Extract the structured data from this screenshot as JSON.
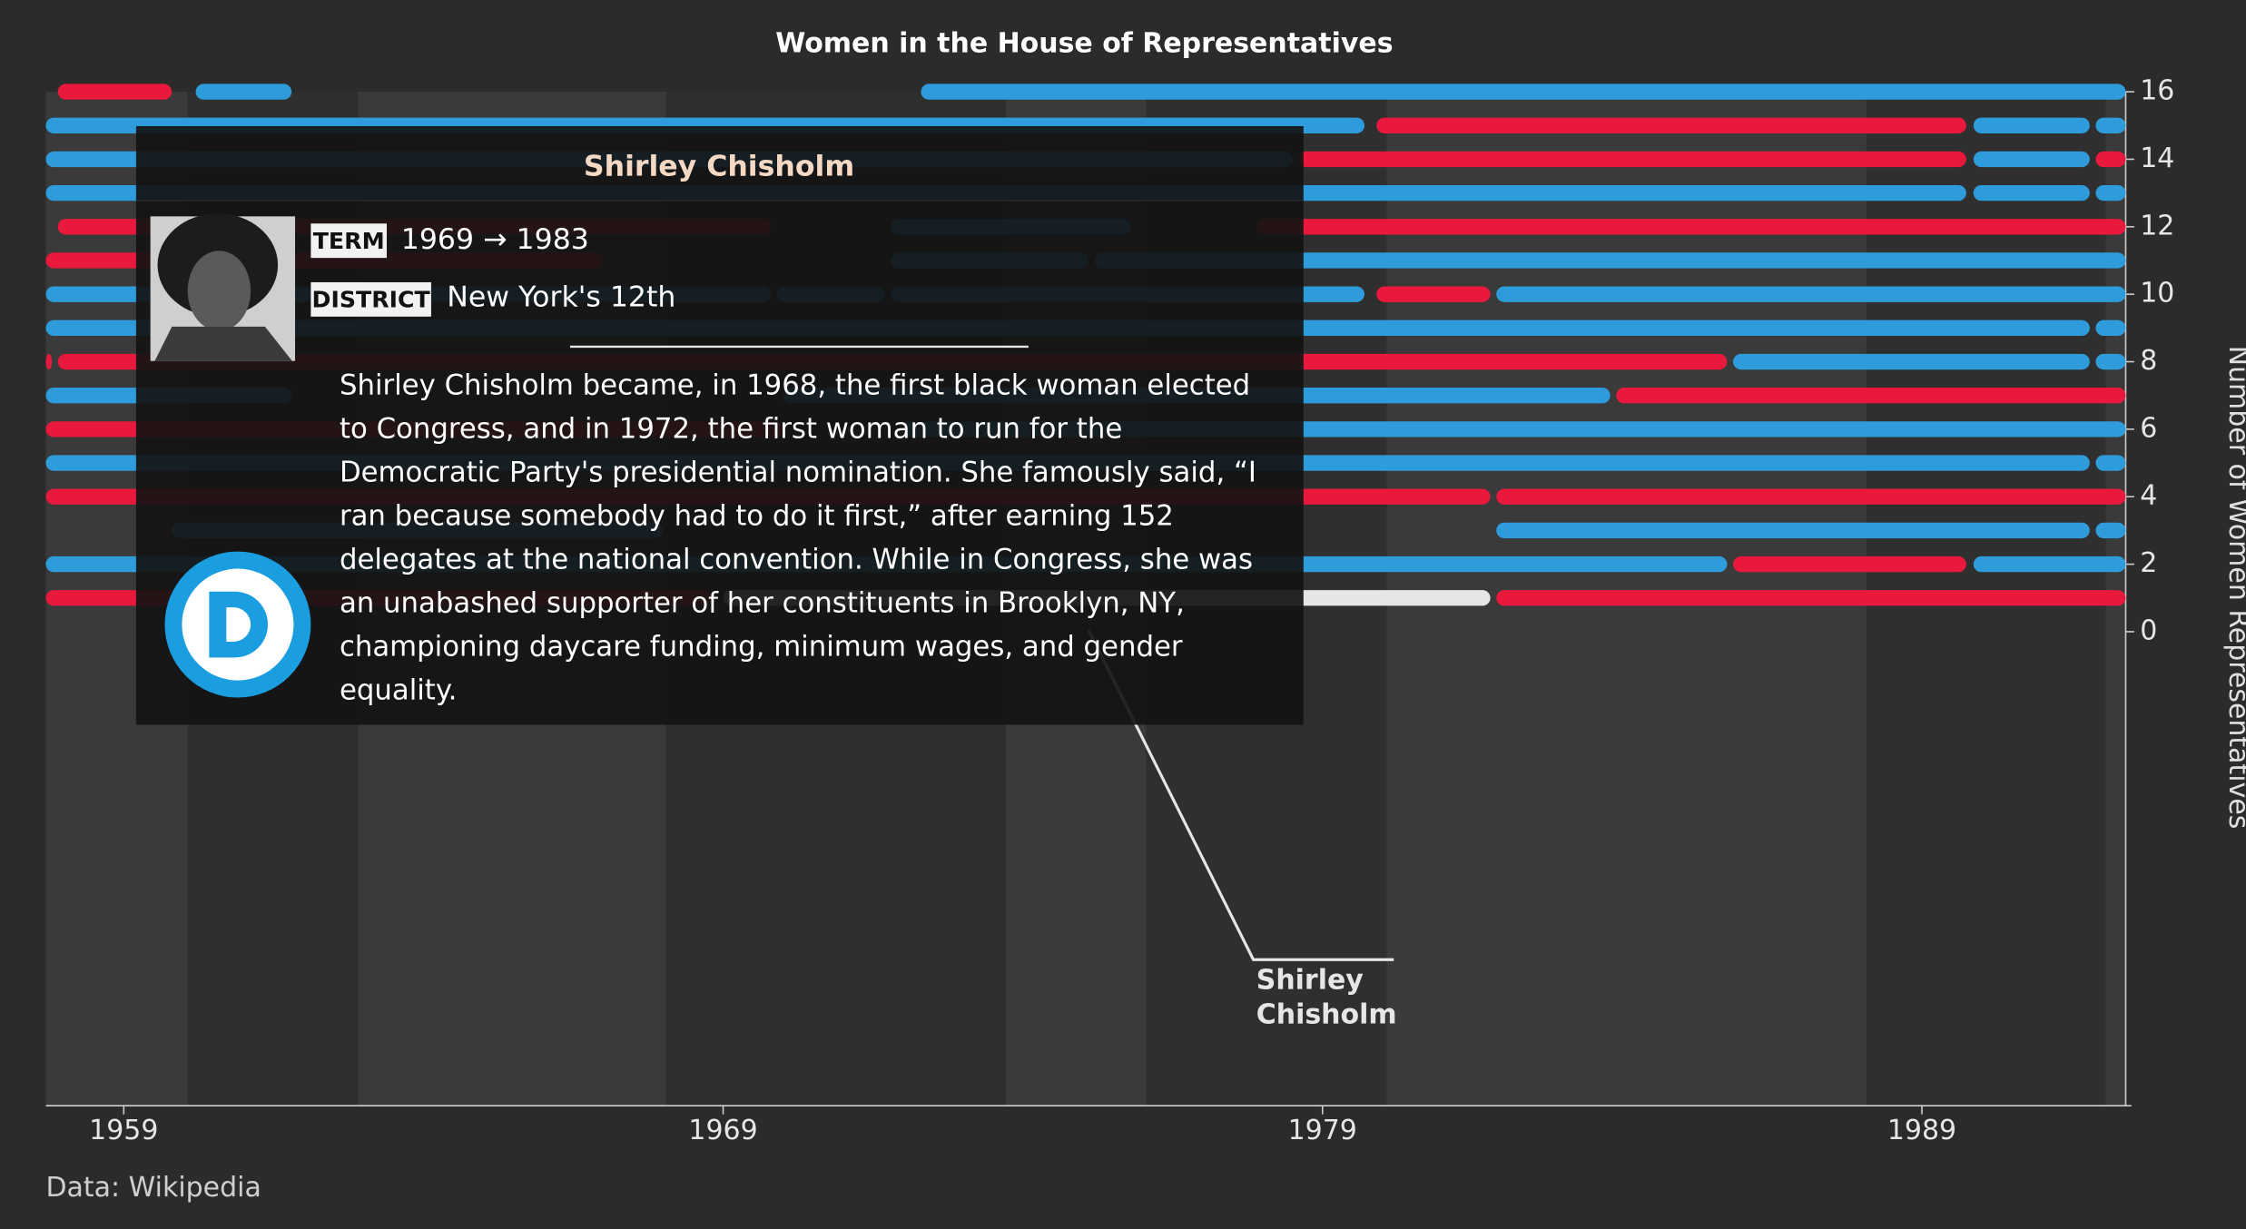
{
  "chart_data": {
    "type": "timeline",
    "title": "Women in the House of Representatives",
    "y_axis_label": "Number of Women Representatives",
    "source": "Data: Wikipedia",
    "xlim": [
      1957.7,
      1992.4
    ],
    "xticks": [
      1959,
      1969,
      1979,
      1989
    ],
    "ylim": [
      0,
      16
    ],
    "yticks": [
      0,
      2,
      4,
      6,
      8,
      10,
      12,
      14,
      16
    ],
    "segments": [
      {
        "row": 1,
        "start": 1957.7,
        "end": 1968.8,
        "color": "#e8193c"
      },
      {
        "row": 1,
        "start": 1969,
        "end": 1981.8,
        "color": "#e6e6e6"
      },
      {
        "row": 1,
        "start": 1981.9,
        "end": 1992.4,
        "color": "#e8193c"
      },
      {
        "row": 2,
        "start": 1957.7,
        "end": 1985.75,
        "color": "#2e9cdb"
      },
      {
        "row": 2,
        "start": 1985.85,
        "end": 1989.74,
        "color": "#e8193c"
      },
      {
        "row": 2,
        "start": 1989.86,
        "end": 1992.4,
        "color": "#2e9cdb"
      },
      {
        "row": 3,
        "start": 1959.8,
        "end": 1968,
        "color": "#2e9cdb"
      },
      {
        "row": 3,
        "start": 1981.9,
        "end": 1991.8,
        "color": "#2e9cdb"
      },
      {
        "row": 3,
        "start": 1991.9,
        "end": 1992.4,
        "color": "#2e9cdb"
      },
      {
        "row": 4,
        "start": 1957.7,
        "end": 1981.8,
        "color": "#e8193c"
      },
      {
        "row": 4,
        "start": 1981.9,
        "end": 1992.4,
        "color": "#e8193c"
      },
      {
        "row": 5,
        "start": 1957.7,
        "end": 1991.8,
        "color": "#2e9cdb"
      },
      {
        "row": 5,
        "start": 1991.9,
        "end": 1992.4,
        "color": "#2e9cdb"
      },
      {
        "row": 6,
        "start": 1957.7,
        "end": 1970,
        "color": "#e8193c"
      },
      {
        "row": 6,
        "start": 1972,
        "end": 1992.4,
        "color": "#2e9cdb"
      },
      {
        "row": 7,
        "start": 1957.7,
        "end": 1961.8,
        "color": "#2e9cdb"
      },
      {
        "row": 7,
        "start": 1970,
        "end": 1983.8,
        "color": "#2e9cdb"
      },
      {
        "row": 7,
        "start": 1983.9,
        "end": 1992.4,
        "color": "#e8193c"
      },
      {
        "row": 8,
        "start": 1957.7,
        "end": 1957.8,
        "color": "#e8193c"
      },
      {
        "row": 8,
        "start": 1957.9,
        "end": 1985.75,
        "color": "#e8193c"
      },
      {
        "row": 8,
        "start": 1985.85,
        "end": 1991.8,
        "color": "#2e9cdb"
      },
      {
        "row": 8,
        "start": 1991.9,
        "end": 1992.4,
        "color": "#2e9cdb"
      },
      {
        "row": 9,
        "start": 1957.7,
        "end": 1991.8,
        "color": "#2e9cdb"
      },
      {
        "row": 9,
        "start": 1991.9,
        "end": 1992.4,
        "color": "#2e9cdb"
      },
      {
        "row": 10,
        "start": 1957.7,
        "end": 1969.8,
        "color": "#2e9cdb"
      },
      {
        "row": 10,
        "start": 1969.9,
        "end": 1971.7,
        "color": "#2e9cdb"
      },
      {
        "row": 10,
        "start": 1971.8,
        "end": 1979.7,
        "color": "#2e9cdb"
      },
      {
        "row": 10,
        "start": 1979.9,
        "end": 1981.8,
        "color": "#e8193c"
      },
      {
        "row": 10,
        "start": 1981.9,
        "end": 1992.4,
        "color": "#2e9cdb"
      },
      {
        "row": 11,
        "start": 1957.7,
        "end": 1967,
        "color": "#e8193c"
      },
      {
        "row": 11,
        "start": 1971.8,
        "end": 1975.1,
        "color": "#2e9cdb"
      },
      {
        "row": 11,
        "start": 1975.2,
        "end": 1992.4,
        "color": "#2e9cdb"
      },
      {
        "row": 12,
        "start": 1957.9,
        "end": 1969.8,
        "color": "#e8193c"
      },
      {
        "row": 12,
        "start": 1971.8,
        "end": 1975.8,
        "color": "#2e9cdb"
      },
      {
        "row": 12,
        "start": 1977.9,
        "end": 1992.4,
        "color": "#e8193c"
      },
      {
        "row": 13,
        "start": 1957.7,
        "end": 1989.74,
        "color": "#2e9cdb"
      },
      {
        "row": 13,
        "start": 1989.86,
        "end": 1991.8,
        "color": "#2e9cdb"
      },
      {
        "row": 13,
        "start": 1991.9,
        "end": 1992.4,
        "color": "#2e9cdb"
      },
      {
        "row": 14,
        "start": 1957.7,
        "end": 1978.5,
        "color": "#2e9cdb"
      },
      {
        "row": 14,
        "start": 1978.6,
        "end": 1989.74,
        "color": "#e8193c"
      },
      {
        "row": 14,
        "start": 1989.86,
        "end": 1991.8,
        "color": "#2e9cdb"
      },
      {
        "row": 14,
        "start": 1991.9,
        "end": 1992.4,
        "color": "#e8193c"
      },
      {
        "row": 15,
        "start": 1957.7,
        "end": 1979.7,
        "color": "#2e9cdb"
      },
      {
        "row": 15,
        "start": 1979.9,
        "end": 1989.74,
        "color": "#e8193c"
      },
      {
        "row": 15,
        "start": 1989.86,
        "end": 1991.8,
        "color": "#2e9cdb"
      },
      {
        "row": 15,
        "start": 1991.9,
        "end": 1992.4,
        "color": "#2e9cdb"
      },
      {
        "row": 16,
        "start": 1957.9,
        "end": 1959.8,
        "color": "#e8193c"
      },
      {
        "row": 16,
        "start": 1960.2,
        "end": 1961.8,
        "color": "#2e9cdb"
      },
      {
        "row": 16,
        "start": 1972.3,
        "end": 1992.4,
        "color": "#2e9cdb"
      }
    ],
    "annotation": [
      "Shirley",
      "Chisholm"
    ],
    "tooltip": {
      "name": "Shirley Chisholm",
      "term_label": "TERM",
      "term": "1969 → 1983",
      "district_label": "DISTRICT",
      "district": "New York's 12th",
      "description": [
        "Shirley Chisholm became, in 1968, the first black woman elected",
        "to Congress, and in 1972, the first woman to run for the",
        "Democratic Party's presidential nomination. She famously said, “I",
        "ran because somebody had to do it first,” after earning 152",
        "delegates at the national convention. While in Congress, she was",
        "an unabashed supporter of her constituents in Brooklyn, NY,",
        "championing daycare funding, minimum wages, and gender",
        "equality."
      ]
    }
  }
}
